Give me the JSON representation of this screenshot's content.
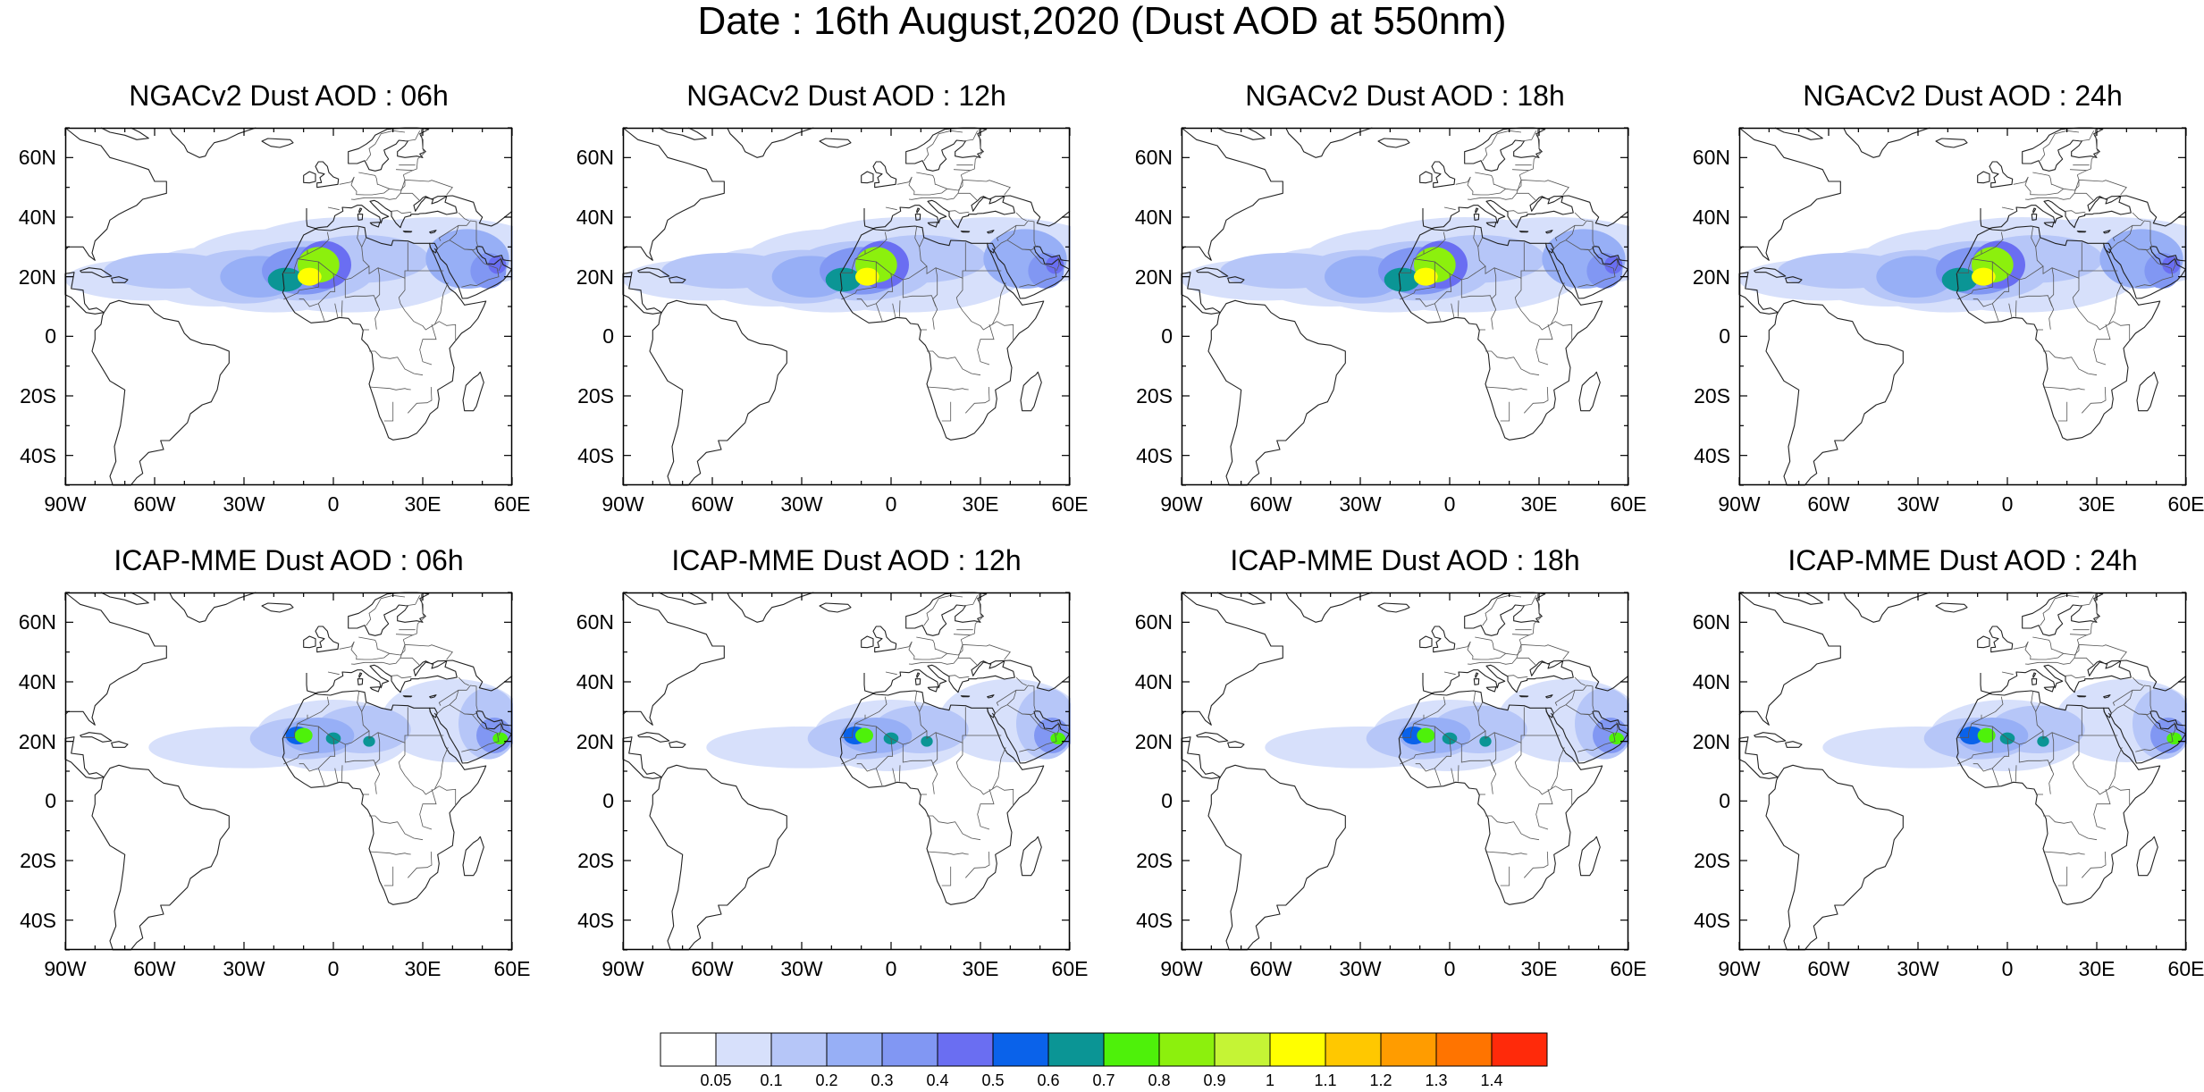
{
  "title": "Date : 16th August,2020 (Dust AOD at 550nm)",
  "panels": [
    {
      "title": "NGACv2 Dust AOD : 06h",
      "model": "NGACv2",
      "hour": 6
    },
    {
      "title": "NGACv2 Dust AOD : 12h",
      "model": "NGACv2",
      "hour": 12
    },
    {
      "title": "NGACv2 Dust AOD : 18h",
      "model": "NGACv2",
      "hour": 18
    },
    {
      "title": "NGACv2 Dust AOD : 24h",
      "model": "NGACv2",
      "hour": 24
    },
    {
      "title": "ICAP-MME Dust AOD : 06h",
      "model": "ICAP-MME",
      "hour": 6
    },
    {
      "title": "ICAP-MME Dust AOD : 12h",
      "model": "ICAP-MME",
      "hour": 12
    },
    {
      "title": "ICAP-MME Dust AOD : 18h",
      "model": "ICAP-MME",
      "hour": 18
    },
    {
      "title": "ICAP-MME Dust AOD : 24h",
      "model": "ICAP-MME",
      "hour": 24
    }
  ],
  "map": {
    "lon_range": [
      -90,
      60
    ],
    "lat_range": [
      -50,
      70
    ],
    "lat_ticks": [
      {
        "value": 60,
        "label": "60N"
      },
      {
        "value": 40,
        "label": "40N"
      },
      {
        "value": 20,
        "label": "20N"
      },
      {
        "value": 0,
        "label": "0"
      },
      {
        "value": -20,
        "label": "20S"
      },
      {
        "value": -40,
        "label": "40S"
      }
    ],
    "lon_ticks": [
      {
        "value": -90,
        "label": "90W"
      },
      {
        "value": -60,
        "label": "60W"
      },
      {
        "value": -30,
        "label": "30W"
      },
      {
        "value": 0,
        "label": "0"
      },
      {
        "value": 30,
        "label": "30E"
      },
      {
        "value": 60,
        "label": "60E"
      }
    ]
  },
  "colorbar": {
    "labels": [
      "0.05",
      "0.1",
      "0.2",
      "0.3",
      "0.4",
      "0.5",
      "0.6",
      "0.7",
      "0.8",
      "0.9",
      "1",
      "1.1",
      "1.2",
      "1.3",
      "1.4"
    ],
    "colors": [
      "#ffffff",
      "#d7e0fb",
      "#b6c6f8",
      "#97aff6",
      "#8197f3",
      "#6a6ef2",
      "#0a62ea",
      "#0b9595",
      "#4ef10a",
      "#8cf00d",
      "#c5f435",
      "#ffff00",
      "#ffc800",
      "#ff9c00",
      "#ff7400",
      "#ff2a0a"
    ]
  },
  "colors": {
    "coast": "#222222",
    "frame": "#000000"
  }
}
